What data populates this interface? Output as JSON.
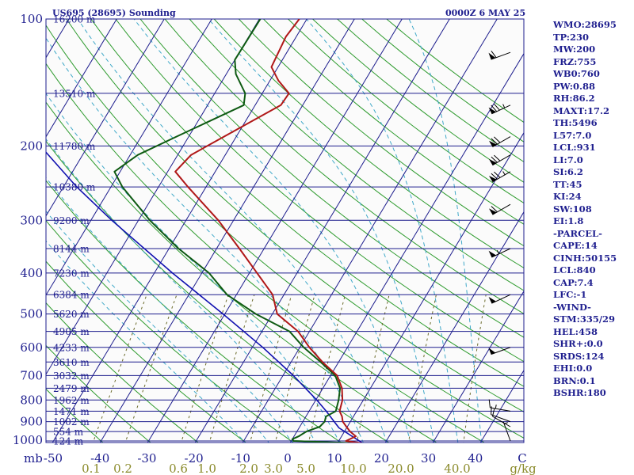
{
  "header": {
    "station": "US695 (28695) Sounding",
    "time": "0000Z  6 MAY 25"
  },
  "indices": [
    "WMO:28695",
    "TP:230",
    "MW:200",
    "FRZ:755",
    "WB0:760",
    "PW:0.88",
    "RH:86.2",
    "MAXT:17.2",
    "TH:5496",
    "L57:7.0",
    "LCL:931",
    "LI:7.0",
    "SI:6.2",
    "TT:45",
    "KI:24",
    "SW:108",
    "EI:1.8",
    "-PARCEL-",
    "CAPE:14",
    "CINH:50155",
    "LCL:840",
    "CAP:7.4",
    "LFC:-1",
    "-WIND-",
    "STM:335/29",
    "HEL:458",
    "SHR+:0.0",
    "SRDS:124",
    "EHI:0.0",
    "BRN:0.1",
    "BSHR:180"
  ],
  "colors": {
    "isobar": "#1c1c8c",
    "isotherm": "#1c1c8c",
    "dry_adiabat": "#2e9b2e",
    "moist_adiabat": "#3fa8c8",
    "mixing_ratio": "#6a6a2a",
    "temperature": "#b01818",
    "dewpoint": "#0e5a12",
    "parcel": "#1010b0",
    "wind": "#000000"
  },
  "chart_data": {
    "type": "skew-t",
    "xunits_label": "mb",
    "temperature_ticks": [
      "-50",
      "-40",
      "-30",
      "-20",
      "-10",
      "0",
      "10",
      "20",
      "30",
      "40",
      "C"
    ],
    "pressure_ticks": [
      {
        "p": 100,
        "label": "100"
      },
      {
        "p": 200,
        "label": "200"
      },
      {
        "p": 300,
        "label": "300"
      },
      {
        "p": 400,
        "label": "400"
      },
      {
        "p": 500,
        "label": "500"
      },
      {
        "p": 600,
        "label": "600"
      },
      {
        "p": 700,
        "label": "700"
      },
      {
        "p": 800,
        "label": "800"
      },
      {
        "p": 900,
        "label": "900"
      },
      {
        "p": 1000,
        "label": "1000"
      }
    ],
    "height_labels": [
      {
        "p": 100,
        "label": "16200 m"
      },
      {
        "p": 150,
        "label": "13510 m"
      },
      {
        "p": 200,
        "label": "11780 m"
      },
      {
        "p": 250,
        "label": "10380 m"
      },
      {
        "p": 300,
        "label": "9200 m"
      },
      {
        "p": 350,
        "label": "8144 m"
      },
      {
        "p": 400,
        "label": "7230 m"
      },
      {
        "p": 450,
        "label": "6384 m"
      },
      {
        "p": 500,
        "label": "5620 m"
      },
      {
        "p": 550,
        "label": "4905 m"
      },
      {
        "p": 600,
        "label": "4233 m"
      },
      {
        "p": 650,
        "label": "3610 m"
      },
      {
        "p": 700,
        "label": "3032 m"
      },
      {
        "p": 750,
        "label": "2479 m"
      },
      {
        "p": 800,
        "label": "1962 m"
      },
      {
        "p": 850,
        "label": "1471 m"
      },
      {
        "p": 900,
        "label": "1002 m"
      },
      {
        "p": 950,
        "label": "554 m"
      },
      {
        "p": 1000,
        "label": "124 m"
      }
    ],
    "mixing_ratio_labels": [
      "0.1",
      "0.2",
      "0.6",
      "1.0",
      "2.0",
      "3.0",
      "5.0",
      "10.0",
      "20.0",
      "40.0",
      "g/kg"
    ],
    "mixing_ratio_values": [
      0.1,
      0.2,
      0.6,
      1.0,
      2.0,
      3.0,
      5.0,
      10.0,
      20.0,
      40.0
    ],
    "isotherms_c": [
      -110,
      -100,
      -90,
      -80,
      -70,
      -60,
      -50,
      -40,
      -30,
      -20,
      -10,
      0,
      10,
      20,
      30,
      40
    ],
    "dry_adiabats_c": [
      -40,
      -30,
      -20,
      -10,
      0,
      10,
      20,
      30,
      40,
      50,
      60,
      70,
      80,
      90,
      100,
      110,
      120,
      130,
      140,
      150,
      160,
      170,
      180,
      190
    ],
    "moist_adiabats_c": [
      -10,
      -5,
      0,
      5,
      10,
      15,
      20,
      25,
      30,
      35,
      40
    ],
    "temperature": [
      {
        "p": 1013,
        "t": 15.4
      },
      {
        "p": 1000,
        "t": 11.5
      },
      {
        "p": 975,
        "t": 13.0
      },
      {
        "p": 950,
        "t": 11.2
      },
      {
        "p": 925,
        "t": 9.8
      },
      {
        "p": 900,
        "t": 8.4
      },
      {
        "p": 875,
        "t": 7.6
      },
      {
        "p": 850,
        "t": 6.4
      },
      {
        "p": 800,
        "t": 5.6
      },
      {
        "p": 750,
        "t": 4.0
      },
      {
        "p": 700,
        "t": 1.4
      },
      {
        "p": 650,
        "t": -3.4
      },
      {
        "p": 600,
        "t": -8.0
      },
      {
        "p": 550,
        "t": -12.4
      },
      {
        "p": 500,
        "t": -19.0
      },
      {
        "p": 450,
        "t": -22.4
      },
      {
        "p": 400,
        "t": -28.4
      },
      {
        "p": 350,
        "t": -35.2
      },
      {
        "p": 300,
        "t": -43.2
      },
      {
        "p": 250,
        "t": -53.8
      },
      {
        "p": 230,
        "t": -58.4
      },
      {
        "p": 210,
        "t": -57.2
      },
      {
        "p": 190,
        "t": -52.6
      },
      {
        "p": 160,
        "t": -44.6
      },
      {
        "p": 150,
        "t": -44.4
      },
      {
        "p": 140,
        "t": -48.2
      },
      {
        "p": 130,
        "t": -51.4
      },
      {
        "p": 110,
        "t": -52.2
      },
      {
        "p": 100,
        "t": -51.6
      }
    ],
    "dewpoint": [
      {
        "p": 1013,
        "t": 15.0
      },
      {
        "p": 1000,
        "t": 0.5
      },
      {
        "p": 990,
        "t": 0.0
      },
      {
        "p": 975,
        "t": 1.0
      },
      {
        "p": 950,
        "t": 2.0
      },
      {
        "p": 925,
        "t": 4.2
      },
      {
        "p": 900,
        "t": 4.6
      },
      {
        "p": 875,
        "t": 4.2
      },
      {
        "p": 850,
        "t": 5.6
      },
      {
        "p": 800,
        "t": 4.8
      },
      {
        "p": 750,
        "t": 3.6
      },
      {
        "p": 700,
        "t": 1.0
      },
      {
        "p": 650,
        "t": -3.8
      },
      {
        "p": 600,
        "t": -9.2
      },
      {
        "p": 550,
        "t": -14.2
      },
      {
        "p": 500,
        "t": -23.5
      },
      {
        "p": 450,
        "t": -32.0
      },
      {
        "p": 400,
        "t": -38.5
      },
      {
        "p": 350,
        "t": -48.0
      },
      {
        "p": 300,
        "t": -57.6
      },
      {
        "p": 250,
        "t": -67.6
      },
      {
        "p": 230,
        "t": -71.2
      },
      {
        "p": 210,
        "t": -68.4
      },
      {
        "p": 190,
        "t": -62.6
      },
      {
        "p": 160,
        "t": -52.4
      },
      {
        "p": 150,
        "t": -53.6
      },
      {
        "p": 135,
        "t": -58.0
      },
      {
        "p": 125,
        "t": -60.0
      },
      {
        "p": 100,
        "t": -59.8
      }
    ],
    "parcel": [
      {
        "p": 1013,
        "t": 15.4
      },
      {
        "p": 931,
        "t": 8.4
      },
      {
        "p": 900,
        "t": 6.6
      },
      {
        "p": 850,
        "t": 3.6
      },
      {
        "p": 800,
        "t": 0.2
      },
      {
        "p": 700,
        "t": -7.8
      },
      {
        "p": 600,
        "t": -17.8
      },
      {
        "p": 500,
        "t": -30.4
      },
      {
        "p": 400,
        "t": -46.2
      },
      {
        "p": 300,
        "t": -65.6
      },
      {
        "p": 250,
        "t": -77.2
      },
      {
        "p": 200,
        "t": -90.0
      },
      {
        "p": 150,
        "t": -104.6
      },
      {
        "p": 100,
        "t": -121.0
      }
    ],
    "winds": [
      {
        "p": 1000,
        "dir": 340,
        "kt": 5
      },
      {
        "p": 925,
        "dir": 300,
        "kt": 10
      },
      {
        "p": 900,
        "dir": 290,
        "kt": 10
      },
      {
        "p": 850,
        "dir": 280,
        "kt": 15
      },
      {
        "p": 600,
        "dir": 250,
        "kt": 50
      },
      {
        "p": 450,
        "dir": 245,
        "kt": 50
      },
      {
        "p": 350,
        "dir": 245,
        "kt": 55
      },
      {
        "p": 275,
        "dir": 240,
        "kt": 60
      },
      {
        "p": 230,
        "dir": 240,
        "kt": 75
      },
      {
        "p": 210,
        "dir": 240,
        "kt": 70
      },
      {
        "p": 190,
        "dir": 240,
        "kt": 70
      },
      {
        "p": 160,
        "dir": 245,
        "kt": 75
      },
      {
        "p": 120,
        "dir": 250,
        "kt": 60
      }
    ]
  }
}
